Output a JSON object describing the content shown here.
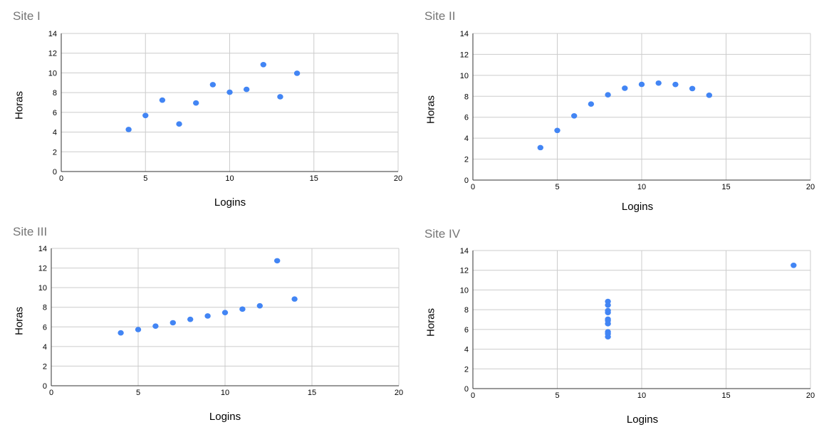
{
  "colors": {
    "point": "#4285f4",
    "grid": "#cccccc",
    "axis": "#333333"
  },
  "chart_data": [
    {
      "type": "scatter",
      "title": "Site I",
      "xlabel": "Logins",
      "ylabel": "Horas",
      "xlim": [
        0,
        20
      ],
      "ylim": [
        0,
        14
      ],
      "xticks": [
        0,
        5,
        10,
        15,
        20
      ],
      "yticks": [
        0,
        2,
        4,
        6,
        8,
        10,
        12,
        14
      ],
      "grid": true,
      "series": [
        {
          "x": [
            4,
            5,
            6,
            7,
            8,
            9,
            10,
            11,
            12,
            13,
            14
          ],
          "y": [
            4.26,
            5.68,
            7.24,
            4.82,
            6.95,
            8.81,
            8.04,
            8.33,
            10.84,
            7.58,
            9.96
          ]
        }
      ]
    },
    {
      "type": "scatter",
      "title": "Site II",
      "xlabel": "Logins",
      "ylabel": "Horas",
      "xlim": [
        0,
        20
      ],
      "ylim": [
        0,
        14
      ],
      "xticks": [
        0,
        5,
        10,
        15,
        20
      ],
      "yticks": [
        0,
        2,
        4,
        6,
        8,
        10,
        12,
        14
      ],
      "grid": true,
      "series": [
        {
          "x": [
            4,
            5,
            6,
            7,
            8,
            9,
            10,
            11,
            12,
            13,
            14
          ],
          "y": [
            3.1,
            4.74,
            6.13,
            7.26,
            8.14,
            8.77,
            9.14,
            9.26,
            9.13,
            8.74,
            8.1
          ]
        }
      ]
    },
    {
      "type": "scatter",
      "title": "Site III",
      "xlabel": "Logins",
      "ylabel": "Horas",
      "xlim": [
        0,
        20
      ],
      "ylim": [
        0,
        14
      ],
      "xticks": [
        0,
        5,
        10,
        15,
        20
      ],
      "yticks": [
        0,
        2,
        4,
        6,
        8,
        10,
        12,
        14
      ],
      "grid": true,
      "series": [
        {
          "x": [
            4,
            5,
            6,
            7,
            8,
            9,
            10,
            11,
            12,
            13,
            14
          ],
          "y": [
            5.39,
            5.73,
            6.08,
            6.42,
            6.77,
            7.11,
            7.46,
            7.81,
            8.15,
            12.74,
            8.84
          ]
        }
      ]
    },
    {
      "type": "scatter",
      "title": "Site IV",
      "xlabel": "Logins",
      "ylabel": "Horas",
      "xlim": [
        0,
        20
      ],
      "ylim": [
        0,
        14
      ],
      "xticks": [
        0,
        5,
        10,
        15,
        20
      ],
      "yticks": [
        0,
        2,
        4,
        6,
        8,
        10,
        12,
        14
      ],
      "grid": true,
      "series": [
        {
          "x": [
            8,
            8,
            8,
            8,
            8,
            8,
            8,
            19,
            8,
            8,
            8
          ],
          "y": [
            6.58,
            5.76,
            7.71,
            8.84,
            8.47,
            7.04,
            5.25,
            12.5,
            5.56,
            7.91,
            6.89
          ]
        }
      ]
    }
  ]
}
